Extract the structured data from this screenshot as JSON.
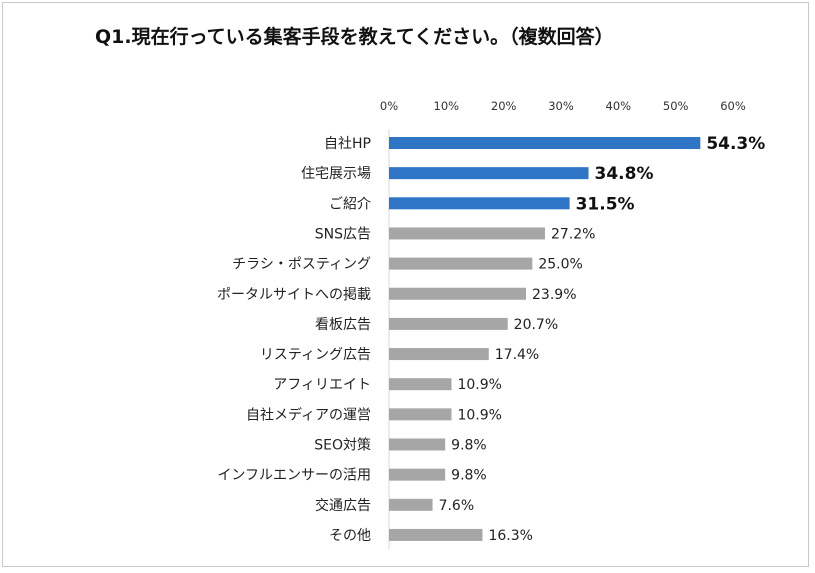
{
  "chart_data": {
    "type": "bar",
    "orientation": "horizontal",
    "title": "Q1.現在行っている集客手段を教えてください。（複数回答）",
    "xlim": [
      0,
      60
    ],
    "x_ticks": [
      "0%",
      "10%",
      "20%",
      "30%",
      "40%",
      "50%",
      "60%"
    ],
    "categories": [
      "自社HP",
      "住宅展示場",
      "ご紹介",
      "SNS広告",
      "チラシ・ポスティング",
      "ポータルサイトへの掲載",
      "看板広告",
      "リスティング広告",
      "アフィリエイト",
      "自社メディアの運営",
      "SEO対策",
      "インフルエンサーの活用",
      "交通広告",
      "その他"
    ],
    "values": [
      54.3,
      34.8,
      31.5,
      27.2,
      25.0,
      23.9,
      20.7,
      17.4,
      10.9,
      10.9,
      9.8,
      9.8,
      7.6,
      16.3
    ],
    "value_labels": [
      "54.3%",
      "34.8%",
      "31.5%",
      "27.2%",
      "25.0%",
      "23.9%",
      "20.7%",
      "17.4%",
      "10.9%",
      "10.9%",
      "9.8%",
      "9.8%",
      "7.6%",
      "16.3%"
    ],
    "highlighted_count": 3,
    "colors": {
      "highlight": "#2e75c6",
      "normal": "#a6a6a6"
    },
    "grid": false,
    "legend": "none"
  }
}
